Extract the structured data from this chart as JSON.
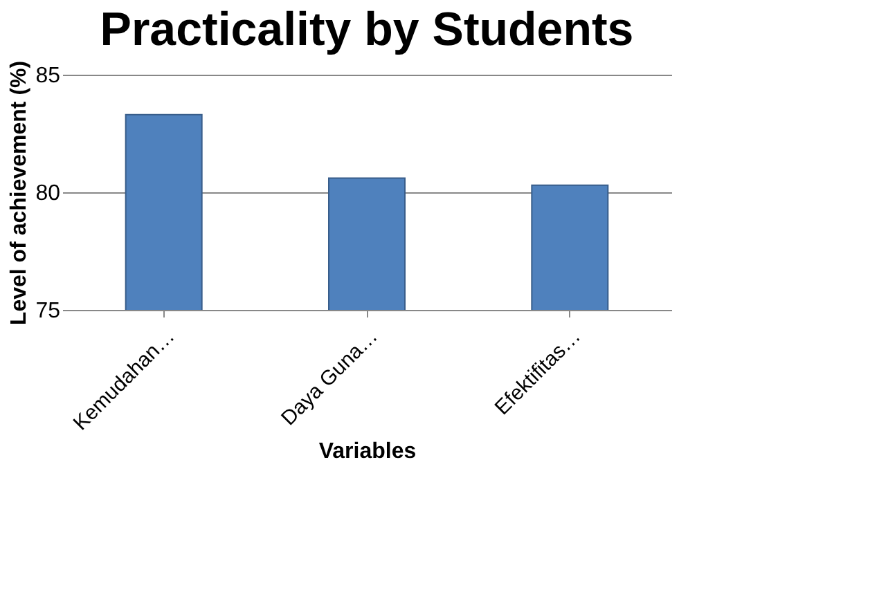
{
  "chart_data": {
    "type": "bar",
    "title": "Practicality by Students",
    "xlabel": "Variables",
    "ylabel": "Level of achievement (%)",
    "categories": [
      "Kemudahan…",
      "Daya Guna…",
      "Efektifitas…"
    ],
    "values": [
      83.3,
      80.6,
      80.3
    ],
    "color": "#4f81bd",
    "ylim": [
      75,
      85
    ],
    "yticks": [
      75,
      80,
      85
    ],
    "grid": "y"
  }
}
